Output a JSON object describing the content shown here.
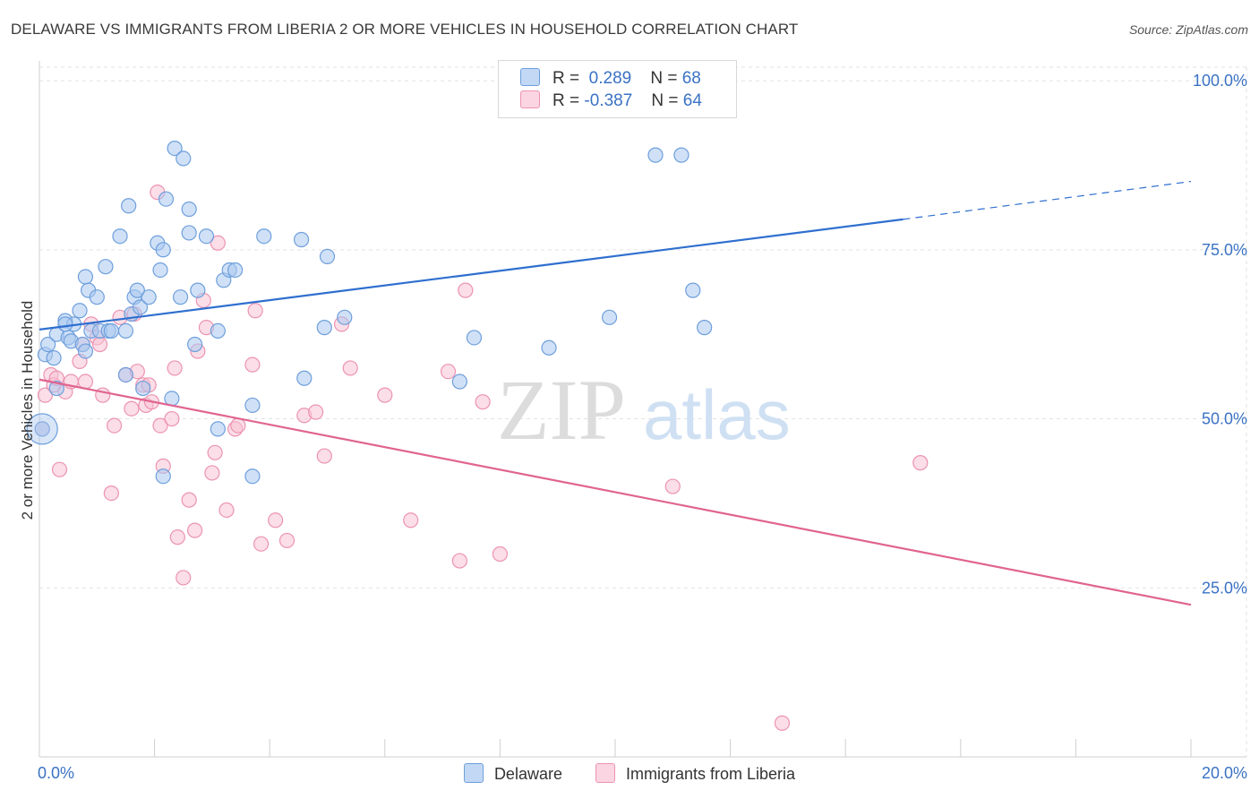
{
  "title": "DELAWARE VS IMMIGRANTS FROM LIBERIA 2 OR MORE VEHICLES IN HOUSEHOLD CORRELATION CHART",
  "source": "Source: ZipAtlas.com",
  "watermark": {
    "zip": "ZIP",
    "atlas": "atlas"
  },
  "legend": {
    "rows": [
      {
        "r_label": "R =",
        "r_value": "0.289",
        "n_label": "N =",
        "n_value": "68"
      },
      {
        "r_label": "R =",
        "r_value": "-0.387",
        "n_label": "N =",
        "n_value": "64"
      }
    ]
  },
  "colors": {
    "delaware_fill": "#a9c8f0",
    "delaware_stroke": "#6e9fdc",
    "delaware_line": "#2f6fcf",
    "liberia_fill": "#f8c3d4",
    "liberia_stroke": "#ec93b2",
    "liberia_line": "#e06490",
    "tick_label": "#3a72c4",
    "grid": "#e2e2e2"
  },
  "chart_data": {
    "type": "scatter",
    "title": "DELAWARE VS IMMIGRANTS FROM LIBERIA 2 OR MORE VEHICLES IN HOUSEHOLD CORRELATION CHART",
    "xlabel": "",
    "ylabel": "2 or more Vehicles in Household",
    "xlim": [
      0,
      20
    ],
    "ylim": [
      0,
      102
    ],
    "x_tick_labels": [
      "0.0%",
      "20.0%"
    ],
    "y_ticks": [
      25,
      50,
      75,
      100
    ],
    "y_tick_labels": [
      "25.0%",
      "50.0%",
      "75.0%",
      "100.0%"
    ],
    "grid": true,
    "legend_position": "bottom",
    "series": [
      {
        "name": "Delaware",
        "points": [
          [
            0.05,
            48.5
          ],
          [
            0.1,
            59.5
          ],
          [
            0.15,
            61
          ],
          [
            0.25,
            59
          ],
          [
            0.3,
            62.5
          ],
          [
            0.3,
            54.5
          ],
          [
            0.45,
            64.5
          ],
          [
            0.5,
            62
          ],
          [
            0.55,
            61.5
          ],
          [
            0.6,
            64
          ],
          [
            0.7,
            66
          ],
          [
            0.75,
            61
          ],
          [
            0.8,
            60
          ],
          [
            0.8,
            71
          ],
          [
            0.85,
            69
          ],
          [
            0.9,
            63
          ],
          [
            1.0,
            68
          ],
          [
            1.05,
            63
          ],
          [
            1.15,
            72.5
          ],
          [
            1.2,
            63
          ],
          [
            1.25,
            63
          ],
          [
            1.4,
            77
          ],
          [
            1.5,
            56.5
          ],
          [
            1.5,
            63
          ],
          [
            1.55,
            81.5
          ],
          [
            1.6,
            65.5
          ],
          [
            1.65,
            68
          ],
          [
            1.7,
            69
          ],
          [
            1.75,
            66.5
          ],
          [
            1.8,
            54.5
          ],
          [
            1.9,
            68
          ],
          [
            2.05,
            76
          ],
          [
            2.1,
            72
          ],
          [
            2.15,
            75
          ],
          [
            2.2,
            82.5
          ],
          [
            2.3,
            53
          ],
          [
            2.35,
            90
          ],
          [
            2.45,
            68
          ],
          [
            2.5,
            88.5
          ],
          [
            2.6,
            77.5
          ],
          [
            2.6,
            81
          ],
          [
            2.7,
            61
          ],
          [
            2.75,
            69
          ],
          [
            2.9,
            77
          ],
          [
            3.1,
            63
          ],
          [
            3.1,
            48.5
          ],
          [
            3.2,
            70.5
          ],
          [
            3.3,
            72
          ],
          [
            3.4,
            72
          ],
          [
            3.7,
            52
          ],
          [
            3.7,
            41.5
          ],
          [
            3.9,
            77
          ],
          [
            4.55,
            76.5
          ],
          [
            4.6,
            56
          ],
          [
            4.95,
            63.5
          ],
          [
            5.0,
            74
          ],
          [
            5.3,
            65
          ],
          [
            7.3,
            55.5
          ],
          [
            7.55,
            62
          ],
          [
            8.85,
            60.5
          ],
          [
            9.9,
            65
          ],
          [
            10.05,
            100
          ],
          [
            10.7,
            89
          ],
          [
            11.15,
            89
          ],
          [
            11.35,
            69
          ],
          [
            11.55,
            63.5
          ],
          [
            2.15,
            41.5
          ],
          [
            0.45,
            64
          ]
        ]
      },
      {
        "name": "Immigrants from Liberia",
        "points": [
          [
            0.05,
            48.5
          ],
          [
            0.1,
            53.5
          ],
          [
            0.2,
            56.5
          ],
          [
            0.25,
            55
          ],
          [
            0.35,
            42.5
          ],
          [
            0.45,
            54
          ],
          [
            0.55,
            55.5
          ],
          [
            0.7,
            58.5
          ],
          [
            0.75,
            61
          ],
          [
            0.8,
            55.5
          ],
          [
            0.9,
            64
          ],
          [
            1.0,
            62
          ],
          [
            1.05,
            61
          ],
          [
            1.1,
            53.5
          ],
          [
            1.25,
            39
          ],
          [
            1.3,
            49
          ],
          [
            1.5,
            56.5
          ],
          [
            1.6,
            51.5
          ],
          [
            1.65,
            65.5
          ],
          [
            1.7,
            57
          ],
          [
            1.8,
            55
          ],
          [
            1.85,
            52
          ],
          [
            1.9,
            55
          ],
          [
            1.95,
            52.5
          ],
          [
            2.05,
            83.5
          ],
          [
            2.1,
            49
          ],
          [
            2.15,
            43
          ],
          [
            2.3,
            50
          ],
          [
            2.35,
            57.5
          ],
          [
            2.4,
            32.5
          ],
          [
            2.5,
            26.5
          ],
          [
            2.6,
            38
          ],
          [
            2.7,
            33.5
          ],
          [
            2.75,
            60
          ],
          [
            2.85,
            67.5
          ],
          [
            2.9,
            63.5
          ],
          [
            3.0,
            42
          ],
          [
            3.05,
            45
          ],
          [
            3.1,
            76
          ],
          [
            3.25,
            36.5
          ],
          [
            3.4,
            48.5
          ],
          [
            3.45,
            49
          ],
          [
            3.7,
            58
          ],
          [
            3.75,
            66
          ],
          [
            3.85,
            31.5
          ],
          [
            4.1,
            35
          ],
          [
            4.3,
            32
          ],
          [
            4.6,
            50.5
          ],
          [
            4.8,
            51
          ],
          [
            4.95,
            44.5
          ],
          [
            5.25,
            64
          ],
          [
            5.4,
            57.5
          ],
          [
            6.0,
            53.5
          ],
          [
            6.45,
            35
          ],
          [
            7.1,
            57
          ],
          [
            7.3,
            29
          ],
          [
            7.4,
            69
          ],
          [
            7.7,
            52.5
          ],
          [
            8.0,
            30
          ],
          [
            11.0,
            40
          ],
          [
            12.9,
            5
          ],
          [
            15.3,
            43.5
          ],
          [
            0.3,
            56
          ],
          [
            1.4,
            65
          ]
        ]
      }
    ],
    "trend_lines": [
      {
        "series": "Delaware",
        "solid": [
          [
            0,
            63.2
          ],
          [
            15,
            79.5
          ]
        ],
        "dashed": [
          [
            15,
            79.5
          ],
          [
            20,
            85.1
          ]
        ]
      },
      {
        "series": "Immigrants from Liberia",
        "solid": [
          [
            0,
            55.8
          ],
          [
            20,
            22.5
          ]
        ]
      }
    ]
  }
}
